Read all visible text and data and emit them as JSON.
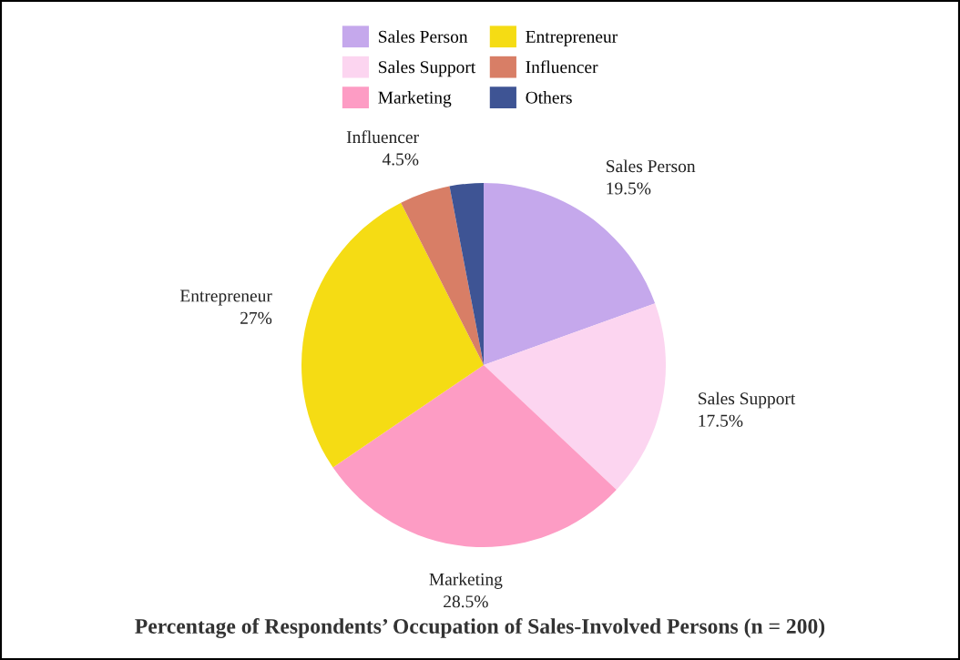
{
  "chart_data": {
    "type": "pie",
    "title": "Percentage of Respondents’ Occupation of Sales-Involved Persons (n = 200)",
    "categories": [
      "Sales Person",
      "Sales Support",
      "Marketing",
      "Entrepreneur",
      "Influencer",
      "Others"
    ],
    "values": [
      19.5,
      17.5,
      28.5,
      27,
      4.5,
      3
    ],
    "value_labels": [
      "19.5%",
      "17.5%",
      "28.5%",
      "27%",
      "4.5%",
      null
    ],
    "colors": [
      "#c5a8ec",
      "#fcd5f0",
      "#fd9cc4",
      "#f5dc14",
      "#d87e66",
      "#3e5494"
    ],
    "legend": "top"
  }
}
